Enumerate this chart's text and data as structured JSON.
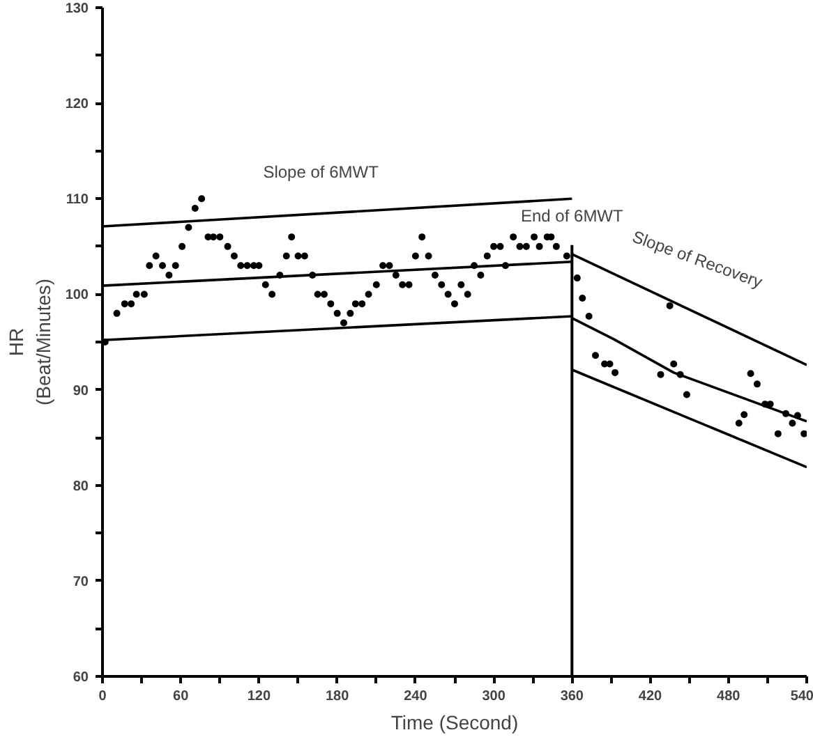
{
  "chart_data": {
    "type": "scatter",
    "xlabel": "Time (Second)",
    "ylabel": "HR\n(Beat/Minutes)",
    "xlim": [
      0,
      540
    ],
    "ylim": [
      60,
      130
    ],
    "xticks": [
      0,
      {
        "value": 30,
        "label": null
      },
      60,
      {
        "value": 90,
        "label": null
      },
      120,
      {
        "value": 150,
        "label": null
      },
      180,
      {
        "value": 210,
        "label": null
      },
      240,
      {
        "value": 270,
        "label": null
      },
      300,
      {
        "value": 330,
        "label": null
      },
      360,
      {
        "value": 390,
        "label": null
      },
      420,
      {
        "value": 450,
        "label": null
      },
      480,
      {
        "value": 510,
        "label": null
      },
      540
    ],
    "yticks": [
      60,
      {
        "value": 65,
        "label": null
      },
      70,
      {
        "value": 75,
        "label": null
      },
      80,
      {
        "value": 85,
        "label": null
      },
      90,
      {
        "value": 95,
        "label": null
      },
      100,
      {
        "value": 105,
        "label": null
      },
      110,
      {
        "value": 115,
        "label": null
      },
      120,
      {
        "value": 125,
        "label": null
      },
      130
    ],
    "grid": false,
    "marker": "circle",
    "ref_lines": [
      {
        "axis": "x",
        "value": 360,
        "label": "End of 6MWT",
        "color": "#000000"
      }
    ],
    "annotations": [
      "Slope of 6MWT",
      "Slope of Recovery"
    ],
    "series": [
      {
        "color": "#000000",
        "x": [
          2,
          11,
          17,
          22,
          26,
          32,
          36,
          41,
          46,
          51,
          56,
          61,
          66,
          71,
          76,
          81,
          85,
          90,
          96,
          101,
          106,
          111,
          116,
          120,
          125,
          130,
          136,
          141,
          145,
          150,
          155,
          161,
          165,
          170,
          175,
          180,
          185,
          190,
          194,
          199,
          204,
          210,
          215,
          220,
          225,
          230,
          235,
          240,
          245,
          250,
          255,
          260,
          265,
          270,
          275,
          280,
          285,
          290,
          295,
          300,
          305,
          309,
          315,
          320,
          325,
          331,
          335,
          341,
          344,
          348,
          356,
          364,
          368,
          373,
          378,
          385,
          389,
          393,
          428,
          435,
          438,
          443,
          448,
          488,
          492,
          497,
          502,
          508,
          512,
          518,
          524,
          529,
          533,
          538
        ],
        "values": [
          95,
          98,
          99,
          99,
          100,
          100,
          103,
          104,
          103,
          102,
          103,
          105,
          107,
          109,
          110,
          106,
          106,
          106,
          105,
          104,
          103,
          103,
          103,
          103,
          101,
          100,
          102,
          104,
          106,
          104,
          104,
          102,
          100,
          100,
          99,
          98,
          97,
          98,
          99,
          99,
          100,
          101,
          103,
          103,
          102,
          101,
          101,
          104,
          106,
          104,
          102,
          101,
          100,
          99,
          101,
          100,
          103,
          102,
          104,
          105,
          105,
          103,
          106,
          105,
          105,
          106,
          105,
          106,
          106,
          105,
          104,
          101.7,
          99.6,
          97.7,
          93.6,
          92.7,
          92.7,
          91.8,
          91.6,
          98.8,
          92.7,
          91.6,
          89.5,
          86.5,
          87.4,
          91.7,
          90.6,
          88.5,
          88.5,
          85.4,
          87.5,
          86.5,
          87.3,
          85.4
        ]
      },
      {
        "type": "line",
        "marker": "none",
        "color": "#000000",
        "x": [
          0,
          360
        ],
        "values": [
          107.1,
          110
        ]
      },
      {
        "type": "line",
        "marker": "none",
        "color": "#000000",
        "x": [
          0,
          360
        ],
        "values": [
          100.9,
          103.4
        ]
      },
      {
        "type": "line",
        "marker": "none",
        "color": "#000000",
        "x": [
          0,
          360
        ],
        "values": [
          95.2,
          97.7
        ]
      },
      {
        "type": "line",
        "marker": "none",
        "color": "#000000",
        "x": [
          360,
          540
        ],
        "values": [
          104.2,
          92.6
        ]
      },
      {
        "type": "line",
        "marker": "none",
        "color": "#000000",
        "x": [
          360,
          392,
          438,
          540
        ],
        "values": [
          97.5,
          95.3,
          91.8,
          86.7
        ]
      },
      {
        "type": "line",
        "marker": "none",
        "color": "#000000",
        "x": [
          360,
          540
        ],
        "values": [
          92.1,
          81.9
        ]
      }
    ]
  }
}
